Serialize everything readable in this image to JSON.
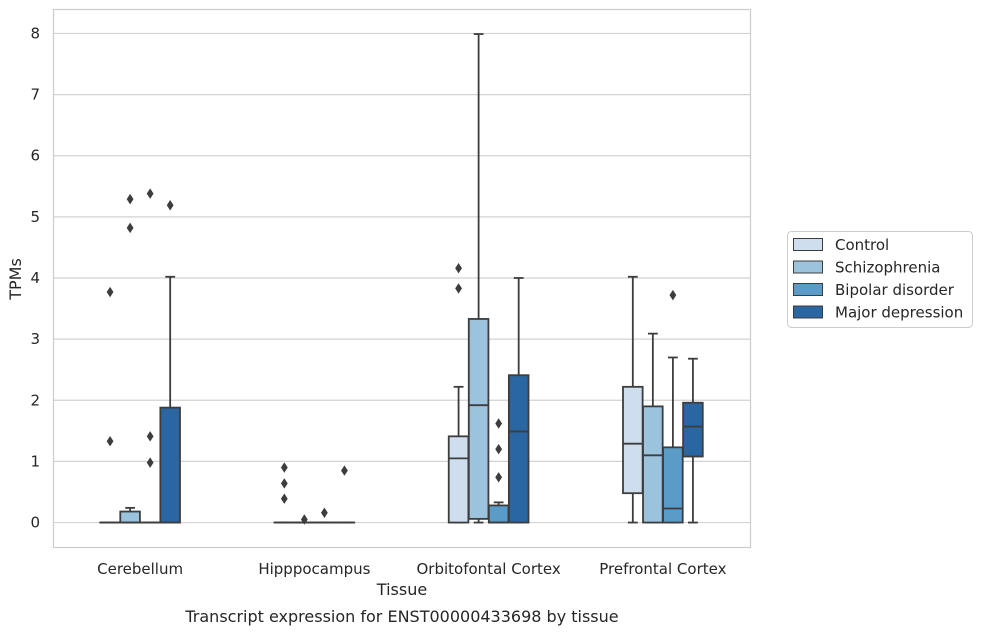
{
  "chart_data": {
    "type": "box",
    "title": "",
    "caption": "Transcript expression for ENST00000433698 by tissue",
    "xlabel": "Tissue",
    "ylabel": "TPMs",
    "ylim": [
      -0.4,
      8.4
    ],
    "yticks": [
      0,
      1,
      2,
      3,
      4,
      5,
      6,
      7,
      8
    ],
    "grid": "horizontal",
    "legend_position": "right",
    "categories": [
      "Cerebellum",
      "Hipppocampus",
      "Orbitofontal Cortex",
      "Prefrontal Cortex"
    ],
    "series": [
      {
        "name": "Control",
        "color": "#cfdeee",
        "boxes": [
          {
            "whislo": 0,
            "q1": 0,
            "med": 0,
            "q3": 0,
            "whishi": 0,
            "fliers": [
              1.33,
              3.77
            ]
          },
          {
            "whislo": 0,
            "q1": 0,
            "med": 0,
            "q3": 0,
            "whishi": 0,
            "fliers": [
              0.39,
              0.64,
              0.9
            ]
          },
          {
            "whislo": 0,
            "q1": 0,
            "med": 1.05,
            "q3": 1.41,
            "whishi": 2.22,
            "fliers": [
              3.83,
              4.16
            ]
          },
          {
            "whislo": 0,
            "q1": 0.48,
            "med": 1.29,
            "q3": 2.22,
            "whishi": 4.02,
            "fliers": []
          }
        ]
      },
      {
        "name": "Schizophrenia",
        "color": "#9bc3de",
        "boxes": [
          {
            "whislo": 0,
            "q1": 0,
            "med": 0,
            "q3": 0.18,
            "whishi": 0.24,
            "fliers": [
              4.82,
              5.29
            ]
          },
          {
            "whislo": 0,
            "q1": 0,
            "med": 0,
            "q3": 0,
            "whishi": 0,
            "fliers": [
              0.05
            ]
          },
          {
            "whislo": 0,
            "q1": 0.06,
            "med": 1.92,
            "q3": 3.33,
            "whishi": 7.99,
            "fliers": []
          },
          {
            "whislo": 0,
            "q1": 0,
            "med": 1.1,
            "q3": 1.9,
            "whishi": 3.09,
            "fliers": []
          }
        ]
      },
      {
        "name": "Bipolar disorder",
        "color": "#5b9bc8",
        "boxes": [
          {
            "whislo": 0,
            "q1": 0,
            "med": 0,
            "q3": 0,
            "whishi": 0,
            "fliers": [
              0.98,
              1.41,
              5.38
            ]
          },
          {
            "whislo": 0,
            "q1": 0,
            "med": 0,
            "q3": 0,
            "whishi": 0,
            "fliers": [
              0.16
            ]
          },
          {
            "whislo": 0,
            "q1": 0,
            "med": 0,
            "q3": 0.28,
            "whishi": 0.33,
            "fliers": [
              0.74,
              1.2,
              1.62
            ]
          },
          {
            "whislo": 0,
            "q1": 0,
            "med": 0.23,
            "q3": 1.23,
            "whishi": 2.7,
            "fliers": [
              3.72
            ]
          }
        ]
      },
      {
        "name": "Major depression",
        "color": "#2a66a1",
        "boxes": [
          {
            "whislo": 0,
            "q1": 0,
            "med": 0,
            "q3": 1.88,
            "whishi": 4.02,
            "fliers": [
              5.19
            ]
          },
          {
            "whislo": 0,
            "q1": 0,
            "med": 0,
            "q3": 0,
            "whishi": 0,
            "fliers": [
              0.85
            ]
          },
          {
            "whislo": 0,
            "q1": 0,
            "med": 1.49,
            "q3": 2.41,
            "whishi": 4.0,
            "fliers": []
          },
          {
            "whislo": 0,
            "q1": 1.08,
            "med": 1.57,
            "q3": 1.96,
            "whishi": 2.68,
            "fliers": []
          }
        ]
      }
    ]
  }
}
